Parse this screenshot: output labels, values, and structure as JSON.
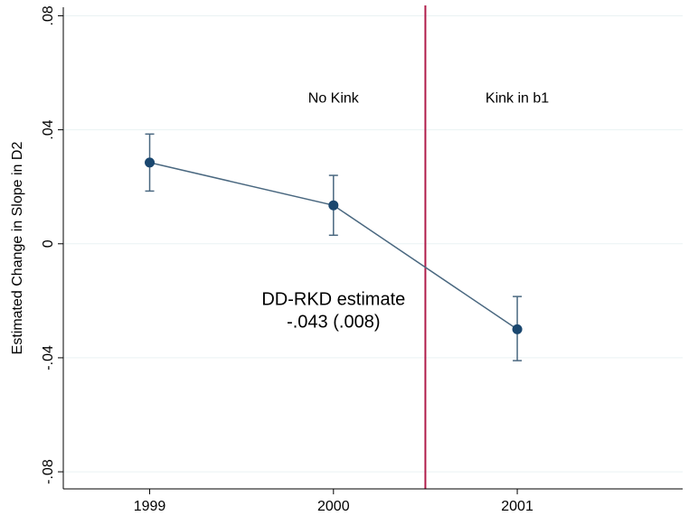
{
  "chart_data": {
    "type": "scatter",
    "title": "",
    "xlabel": "",
    "ylabel": "Estimated Change in Slope in D2",
    "categories": [
      "1999",
      "2000",
      "2001"
    ],
    "x": [
      1999,
      2000,
      2001
    ],
    "xlim": [
      1998.53,
      2001.9
    ],
    "ylim": [
      -0.086,
      0.083
    ],
    "yticks": [
      0.08,
      0.04,
      0,
      -0.04,
      -0.08
    ],
    "ytick_labels": [
      ".08",
      ".04",
      "0",
      "-.04",
      "-.08"
    ],
    "grid": true,
    "series": [
      {
        "values": [
          0.0285,
          0.0135,
          -0.03
        ],
        "ci_low": [
          0.0185,
          0.003,
          -0.041
        ],
        "ci_high": [
          0.0385,
          0.024,
          -0.0185
        ]
      }
    ],
    "vline": {
      "x": 2000.5
    },
    "annotations": [
      {
        "text": "No Kink",
        "x": 2000,
        "y": 0.0495
      },
      {
        "text": "Kink in b1",
        "x": 2001,
        "y": 0.0495
      }
    ],
    "note": {
      "line1": "DD-RKD estimate",
      "line2": "-.043 (.008)",
      "x": 2000,
      "y": -0.0215
    },
    "colors": {
      "series": "#1a476f",
      "line": "#4a6880",
      "vline": "#b01c4a",
      "grid": "#eaf2f3",
      "axis": "#000000"
    }
  }
}
